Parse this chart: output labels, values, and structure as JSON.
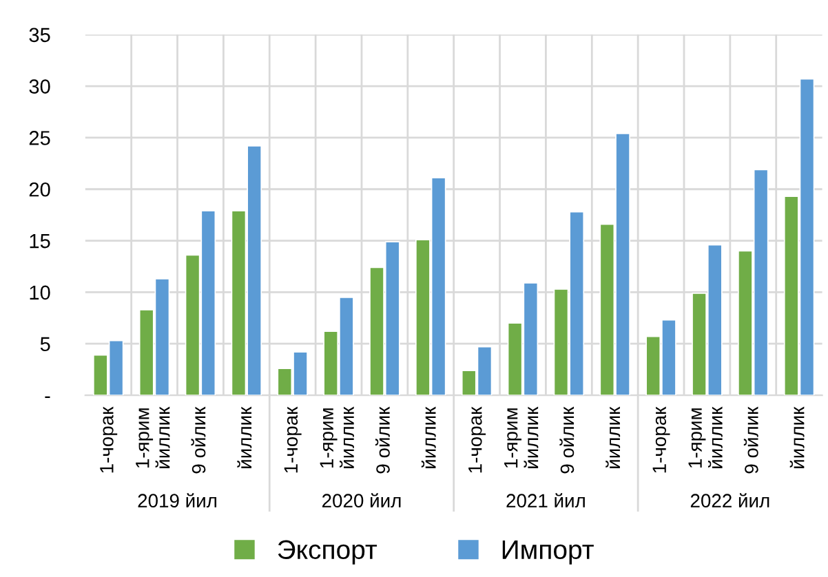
{
  "chart_data": {
    "type": "bar",
    "categories": [
      "1-чорак",
      "1-ярим\nйиллик",
      "9 ойлик",
      "йиллик",
      "1-чорак",
      "1-ярим\nйиллик",
      "9 ойлик",
      "йиллик",
      "1-чорак",
      "1-ярим\nйиллик",
      "9 ойлик",
      "йиллик",
      "1-чорак",
      "1-ярим\nйиллик",
      "9 ойлик",
      "йиллик"
    ],
    "series": [
      {
        "name": "Экспорт",
        "color": "#70ad47",
        "values": [
          3.9,
          8.3,
          13.6,
          17.9,
          2.6,
          6.2,
          12.4,
          15.1,
          2.4,
          7.0,
          10.3,
          16.6,
          5.7,
          9.9,
          14.0,
          19.3
        ]
      },
      {
        "name": "Импорт",
        "color": "#5b9bd5",
        "values": [
          5.3,
          11.3,
          17.9,
          24.2,
          4.2,
          9.5,
          14.9,
          21.1,
          4.7,
          10.9,
          17.8,
          25.4,
          7.3,
          14.6,
          21.9,
          30.7
        ]
      }
    ],
    "annotations": [
      "2019 йил",
      "2020 йил",
      "2021 йил",
      "2022 йил"
    ],
    "ylim": [
      0,
      35
    ],
    "yticks": [
      {
        "value": 0,
        "label": "-"
      },
      5,
      10,
      15,
      20,
      25,
      30,
      35
    ],
    "grid": true,
    "legend": "bottom"
  }
}
